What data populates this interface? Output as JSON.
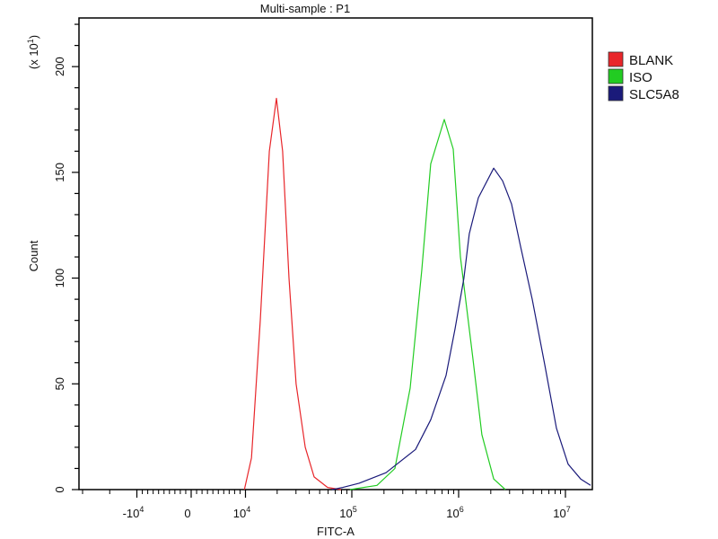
{
  "chart_data": {
    "type": "line",
    "title": "Multi-sample : P1",
    "xlabel": "FITC-A",
    "ylabel": "Count",
    "yscale_note": "(x 10^1)",
    "yscale_text": {
      "base": "(x 10",
      "exp": "1",
      "close": ")"
    },
    "x_scale": "biexponential",
    "xlim": [
      -20500,
      17800000
    ],
    "ylim": [
      0,
      223
    ],
    "grid": false,
    "legend_position": "right",
    "x_ticks": [
      {
        "value": -10000,
        "base": "-10",
        "exp": "4"
      },
      {
        "value": 0,
        "base": "0",
        "exp": ""
      },
      {
        "value": 10000,
        "base": "10",
        "exp": "4"
      },
      {
        "value": 100000,
        "base": "10",
        "exp": "5"
      },
      {
        "value": 1000000,
        "base": "10",
        "exp": "6"
      },
      {
        "value": 10000000,
        "base": "10",
        "exp": "7"
      }
    ],
    "y_ticks": [
      0,
      50,
      100,
      150,
      200
    ],
    "series": [
      {
        "name": "BLANK",
        "color": "#e8262a",
        "x": [
          9800,
          11500,
          13900,
          16900,
          19700,
          22500,
          25800,
          30100,
          36600,
          44400,
          59300,
          79300
        ],
        "y": [
          0,
          15,
          80,
          160,
          185,
          160,
          100,
          50,
          20,
          6,
          1,
          0
        ]
      },
      {
        "name": "ISO",
        "color": "#22cc22",
        "x": [
          96000,
          172000,
          253000,
          352000,
          452000,
          548000,
          734000,
          891000,
          1040000,
          1360000,
          1650000,
          2130000,
          2740000
        ],
        "y": [
          0,
          2,
          10,
          48,
          104,
          154,
          175,
          161,
          110,
          62,
          26,
          5,
          0
        ]
      },
      {
        "name": "SLC5A8",
        "color": "#1a1a7a",
        "x": [
          65300,
          82400,
          117000,
          209000,
          395000,
          548000,
          763000,
          925000,
          1120000,
          1260000,
          1530000,
          2130000,
          2580000,
          3130000,
          3800000,
          4890000,
          6410000,
          8240000,
          10600000,
          13900000,
          17200000
        ],
        "y": [
          0,
          1,
          3,
          8,
          19,
          33,
          54,
          76,
          100,
          121,
          138,
          152,
          146,
          135,
          115,
          90,
          59,
          29,
          12,
          5,
          2
        ]
      }
    ]
  }
}
